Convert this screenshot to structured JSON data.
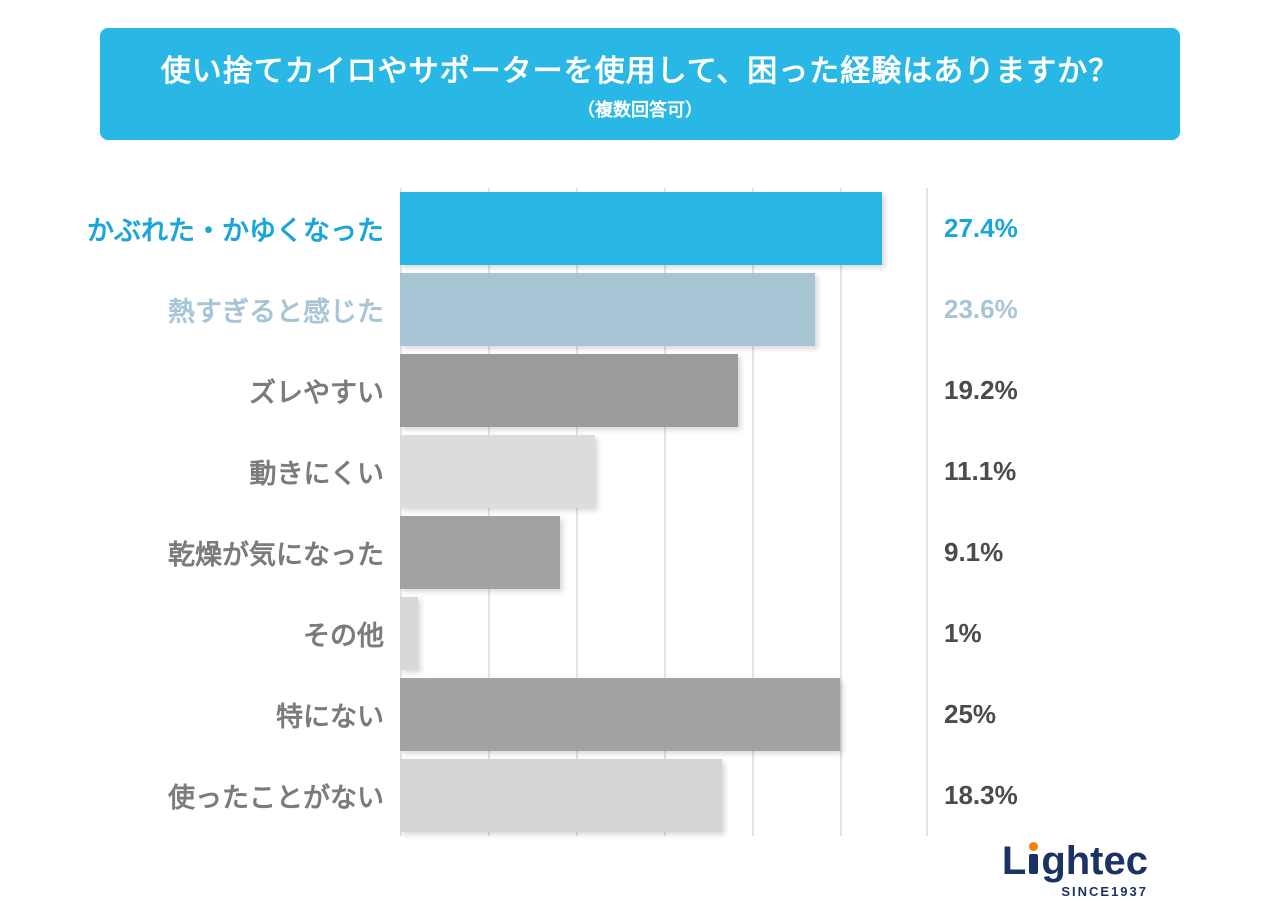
{
  "header": {
    "title": "使い捨てカイロやサポーターを使用して、困った経験はありますか？",
    "subtitle": "（複数回答可）",
    "bg_color": "#29b7e6",
    "text_color": "#ffffff"
  },
  "chart_data": {
    "type": "bar",
    "orientation": "horizontal",
    "title": "使い捨てカイロやサポーターを使用して、困った経験はありますか？",
    "subtitle": "（複数回答可）",
    "unit": "%",
    "xlim": [
      0,
      30
    ],
    "grid_step": 5,
    "grid_on": true,
    "legend": "none",
    "categories": [
      "かぶれた・かゆくなった",
      "熱すぎると感じた",
      "ズレやすい",
      "動きにくい",
      "乾燥が気になった",
      "その他",
      "特にない",
      "使ったことがない"
    ],
    "values": [
      27.4,
      23.6,
      19.2,
      11.1,
      9.1,
      1,
      25,
      18.3
    ],
    "rows": [
      {
        "label": "かぶれた・かゆくなった",
        "value": 27.4,
        "value_label": "27.4%",
        "bar_color": "#29b7e6",
        "label_color": "#1aa6da",
        "value_color": "#1aa6da"
      },
      {
        "label": "熱すぎると感じた",
        "value": 23.6,
        "value_label": "23.6%",
        "bar_color": "#a8c5d5",
        "label_color": "#a8c5d5",
        "value_color": "#a8c5d5"
      },
      {
        "label": "ズレやすい",
        "value": 19.2,
        "value_label": "19.2%",
        "bar_color": "#9b9b9b",
        "label_color": "#7b7b7b",
        "value_color": "#4b4b4b"
      },
      {
        "label": "動きにくい",
        "value": 11.1,
        "value_label": "11.1%",
        "bar_color": "#dcdcdc",
        "label_color": "#7b7b7b",
        "value_color": "#4b4b4b"
      },
      {
        "label": "乾燥が気になった",
        "value": 9.1,
        "value_label": "9.1%",
        "bar_color": "#a2a2a2",
        "label_color": "#7b7b7b",
        "value_color": "#4b4b4b"
      },
      {
        "label": "その他",
        "value": 1,
        "value_label": "1%",
        "bar_color": "#d8d8d8",
        "label_color": "#7b7b7b",
        "value_color": "#4b4b4b"
      },
      {
        "label": "特にない",
        "value": 25,
        "value_label": "25%",
        "bar_color": "#a2a2a2",
        "label_color": "#7b7b7b",
        "value_color": "#4b4b4b"
      },
      {
        "label": "使ったことがない",
        "value": 18.3,
        "value_label": "18.3%",
        "bar_color": "#d5d5d5",
        "label_color": "#7b7b7b",
        "value_color": "#4b4b4b"
      }
    ]
  },
  "logo": {
    "name": "Lightec",
    "part1": "L",
    "part2": "ghtec",
    "tagline": "SINCE1937",
    "color": "#1b3264",
    "accent_color": "#f08300"
  }
}
